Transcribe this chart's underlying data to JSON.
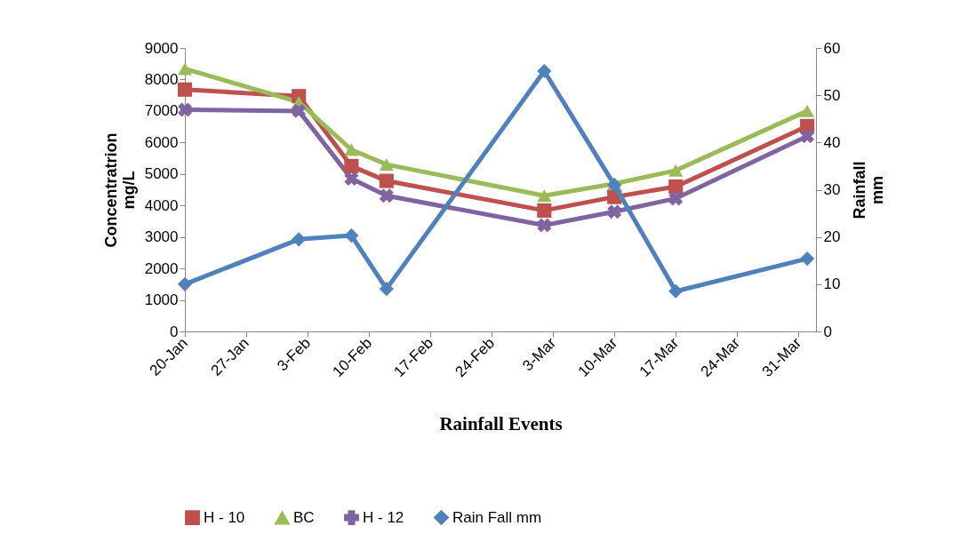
{
  "chart_data": {
    "type": "line",
    "xlabel": "Rainfall Events",
    "ylabel": "Concentratrion\nmg/L",
    "y2label": "Rainfall\nmm",
    "x": [
      "--01-20",
      "--02-02",
      "--02-08",
      "--02-12",
      "--03-02",
      "--03-10",
      "--03-17",
      "--04-01"
    ],
    "xlim": [
      "--01-20",
      "--04-02"
    ],
    "xticks": [
      {
        "value": "--01-20",
        "label": "20-Jan"
      },
      {
        "value": "--01-27",
        "label": "27-Jan"
      },
      {
        "value": "--02-03",
        "label": "3-Feb"
      },
      {
        "value": "--02-10",
        "label": "10-Feb"
      },
      {
        "value": "--02-17",
        "label": "17-Feb"
      },
      {
        "value": "--02-24",
        "label": "24-Feb"
      },
      {
        "value": "--03-03",
        "label": "3-Mar"
      },
      {
        "value": "--03-10",
        "label": "10-Mar"
      },
      {
        "value": "--03-17",
        "label": "17-Mar"
      },
      {
        "value": "--03-24",
        "label": "24-Mar"
      },
      {
        "value": "--03-31",
        "label": "31-Mar"
      }
    ],
    "ylim": [
      0,
      9000
    ],
    "yticks": [
      0,
      1000,
      2000,
      3000,
      4000,
      5000,
      6000,
      7000,
      8000,
      9000
    ],
    "y2lim": [
      0,
      60
    ],
    "y2ticks": [
      0,
      10,
      20,
      30,
      40,
      50,
      60
    ],
    "series": [
      {
        "name": "H - 10",
        "color": "#c0504d",
        "marker": "square",
        "values": [
          7680,
          7470,
          5250,
          4780,
          3840,
          4270,
          4600,
          6520
        ]
      },
      {
        "name": "BC",
        "color": "#9bbb59",
        "marker": "triangle",
        "values": [
          8340,
          7280,
          5770,
          5300,
          4310,
          4690,
          5110,
          7000
        ]
      },
      {
        "name": "H - 12",
        "color": "#8064a2",
        "marker": "cross",
        "values": [
          7040,
          7000,
          4850,
          4310,
          3370,
          3800,
          4220,
          6200
        ]
      },
      {
        "name": "Rain Fall mm",
        "color": "#4f81bd",
        "marker": "diamond",
        "axis": "y2",
        "values": [
          10,
          19.5,
          20.3,
          9,
          55.1,
          31,
          8.5,
          15.4
        ]
      }
    ],
    "legend": "bottom",
    "grid": false
  }
}
